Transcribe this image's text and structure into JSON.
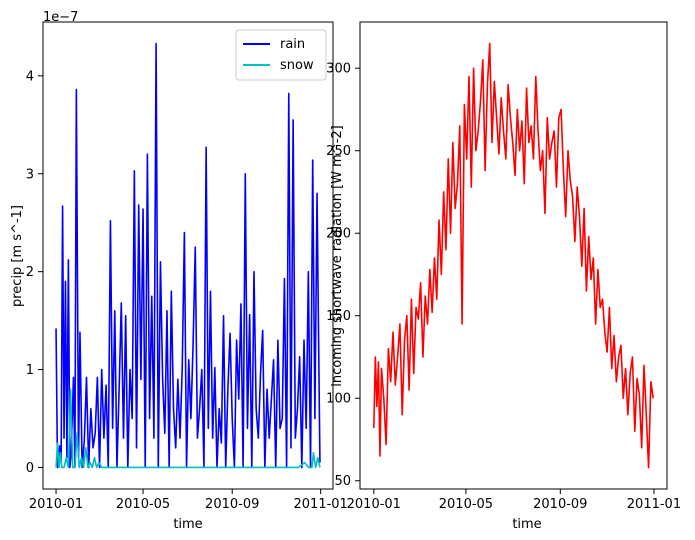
{
  "chart_data": [
    {
      "type": "line",
      "xlabel": "time",
      "ylabel": "precip [m s^-1]",
      "y_multiplier_label": "1e−7",
      "x_ticks": [
        "2010-01",
        "2010-05",
        "2010-09",
        "2011-01"
      ],
      "y_ticks": [
        "0",
        "1",
        "2",
        "3",
        "4"
      ],
      "xlim": [
        "2009-12-14",
        "2011-01-18"
      ],
      "ylim": [
        -0.22,
        4.55
      ],
      "y_scale_note": "values ×1e-7",
      "legend": {
        "placement": "top-right",
        "entries": [
          "rain",
          "snow"
        ]
      },
      "series": [
        {
          "name": "rain",
          "color": "#0000ff",
          "x": [
            "2010-01-01",
            "2010-01-03",
            "2010-01-06",
            "2010-01-08",
            "2010-01-10",
            "2010-01-12",
            "2010-01-14",
            "2010-01-16",
            "2010-01-18",
            "2010-01-20",
            "2010-01-22",
            "2010-01-25",
            "2010-01-27",
            "2010-01-29",
            "2010-02-01",
            "2010-02-03",
            "2010-02-06",
            "2010-02-09",
            "2010-02-12",
            "2010-02-15",
            "2010-02-18",
            "2010-02-21",
            "2010-02-24",
            "2010-02-27",
            "2010-03-02",
            "2010-03-05",
            "2010-03-08",
            "2010-03-11",
            "2010-03-14",
            "2010-03-17",
            "2010-03-20",
            "2010-03-23",
            "2010-03-26",
            "2010-03-29",
            "2010-04-01",
            "2010-04-04",
            "2010-04-07",
            "2010-04-10",
            "2010-04-13",
            "2010-04-16",
            "2010-04-19",
            "2010-04-22",
            "2010-04-25",
            "2010-04-28",
            "2010-05-01",
            "2010-05-04",
            "2010-05-07",
            "2010-05-10",
            "2010-05-13",
            "2010-05-16",
            "2010-05-19",
            "2010-05-22",
            "2010-05-25",
            "2010-05-28",
            "2010-05-31",
            "2010-06-03",
            "2010-06-06",
            "2010-06-09",
            "2010-06-12",
            "2010-06-15",
            "2010-06-18",
            "2010-06-21",
            "2010-06-24",
            "2010-06-27",
            "2010-06-30",
            "2010-07-03",
            "2010-07-06",
            "2010-07-09",
            "2010-07-12",
            "2010-07-15",
            "2010-07-18",
            "2010-07-21",
            "2010-07-24",
            "2010-07-27",
            "2010-07-30",
            "2010-08-02",
            "2010-08-05",
            "2010-08-08",
            "2010-08-11",
            "2010-08-14",
            "2010-08-17",
            "2010-08-20",
            "2010-08-23",
            "2010-08-26",
            "2010-08-29",
            "2010-09-01",
            "2010-09-04",
            "2010-09-07",
            "2010-09-10",
            "2010-09-13",
            "2010-09-16",
            "2010-09-19",
            "2010-09-22",
            "2010-09-25",
            "2010-09-28",
            "2010-10-01",
            "2010-10-04",
            "2010-10-07",
            "2010-10-10",
            "2010-10-13",
            "2010-10-16",
            "2010-10-19",
            "2010-10-22",
            "2010-10-25",
            "2010-10-28",
            "2010-10-31",
            "2010-11-03",
            "2010-11-06",
            "2010-11-09",
            "2010-11-12",
            "2010-11-15",
            "2010-11-18",
            "2010-11-21",
            "2010-11-24",
            "2010-11-27",
            "2010-11-30",
            "2010-12-03",
            "2010-12-06",
            "2010-12-09",
            "2010-12-12",
            "2010-12-15",
            "2010-12-18",
            "2010-12-21",
            "2010-12-24",
            "2010-12-27",
            "2010-12-30",
            "2010-12-31"
          ],
          "values": [
            1.42,
            0.0,
            0.22,
            0.05,
            2.67,
            0.3,
            1.9,
            0.1,
            2.12,
            0.0,
            0.15,
            0.92,
            0.0,
            3.86,
            0.1,
            1.38,
            0.0,
            0.28,
            0.92,
            0.0,
            0.6,
            0.2,
            0.35,
            0.92,
            0.0,
            1.0,
            0.3,
            0.84,
            0.0,
            2.52,
            0.4,
            1.6,
            0.0,
            0.8,
            1.68,
            0.3,
            1.55,
            0.0,
            1.0,
            0.5,
            3.03,
            0.2,
            2.68,
            0.9,
            2.64,
            0.0,
            3.2,
            0.5,
            1.75,
            0.3,
            4.33,
            0.0,
            2.1,
            0.9,
            0.35,
            1.6,
            0.0,
            1.8,
            0.6,
            0.2,
            0.9,
            0.3,
            1.0,
            2.4,
            0.0,
            1.1,
            0.5,
            1.25,
            2.25,
            0.3,
            0.6,
            1.0,
            0.0,
            3.27,
            0.4,
            1.8,
            0.3,
            1.02,
            0.0,
            0.6,
            0.25,
            1.55,
            0.0,
            0.8,
            1.37,
            0.5,
            0.0,
            1.3,
            0.7,
            1.67,
            0.0,
            3.0,
            0.4,
            1.56,
            0.0,
            2.0,
            0.6,
            0.3,
            0.95,
            1.4,
            0.0,
            0.8,
            0.3,
            0.7,
            1.1,
            0.0,
            1.3,
            0.4,
            0.5,
            1.93,
            0.0,
            3.82,
            0.2,
            3.55,
            0.3,
            0.6,
            1.13,
            0.0,
            1.3,
            0.4,
            2.0,
            0.0,
            3.14,
            0.5,
            2.8,
            0.7,
            0.05
          ]
        },
        {
          "name": "snow",
          "color": "#00bfbf",
          "x": [
            "2010-01-01",
            "2010-01-03",
            "2010-01-05",
            "2010-01-07",
            "2010-01-09",
            "2010-01-12",
            "2010-01-15",
            "2010-01-18",
            "2010-01-21",
            "2010-01-24",
            "2010-01-27",
            "2010-01-30",
            "2010-02-02",
            "2010-02-05",
            "2010-02-08",
            "2010-02-11",
            "2010-02-14",
            "2010-02-17",
            "2010-02-20",
            "2010-02-23",
            "2010-02-26",
            "2010-03-01",
            "2010-03-05",
            "2010-03-10",
            "2010-03-15",
            "2010-03-20",
            "2010-03-25",
            "2010-03-31",
            "2010-04-30",
            "2010-06-01",
            "2010-07-01",
            "2010-08-01",
            "2010-09-01",
            "2010-10-01",
            "2010-11-01",
            "2010-11-20",
            "2010-12-01",
            "2010-12-10",
            "2010-12-15",
            "2010-12-20",
            "2010-12-22",
            "2010-12-25",
            "2010-12-28",
            "2010-12-31"
          ],
          "values": [
            0.0,
            0.25,
            0.0,
            0.15,
            0.0,
            0.0,
            0.1,
            0.0,
            0.8,
            0.0,
            0.0,
            0.35,
            0.0,
            0.1,
            0.0,
            0.2,
            0.0,
            0.05,
            0.0,
            0.1,
            0.0,
            0.05,
            0.0,
            0.0,
            0.0,
            0.0,
            0.0,
            0.0,
            0.0,
            0.0,
            0.0,
            0.0,
            0.0,
            0.0,
            0.0,
            0.0,
            0.0,
            0.05,
            0.0,
            0.0,
            0.15,
            0.0,
            0.1,
            0.0
          ]
        }
      ]
    },
    {
      "type": "line",
      "xlabel": "time",
      "ylabel": "incoming shortwave radiation [W m^-2]",
      "x_ticks": [
        "2010-01",
        "2010-05",
        "2010-09",
        "2011-01"
      ],
      "y_ticks": [
        "50",
        "100",
        "150",
        "200",
        "250",
        "300"
      ],
      "xlim": [
        "2009-12-14",
        "2011-01-18"
      ],
      "ylim": [
        45,
        328
      ],
      "series": [
        {
          "color": "#ff0000",
          "x": [
            "2010-01-01",
            "2010-01-03",
            "2010-01-05",
            "2010-01-07",
            "2010-01-09",
            "2010-01-11",
            "2010-01-14",
            "2010-01-17",
            "2010-01-20",
            "2010-01-23",
            "2010-01-26",
            "2010-01-29",
            "2010-02-01",
            "2010-02-04",
            "2010-02-07",
            "2010-02-10",
            "2010-02-13",
            "2010-02-16",
            "2010-02-19",
            "2010-02-22",
            "2010-02-25",
            "2010-02-28",
            "2010-03-03",
            "2010-03-06",
            "2010-03-09",
            "2010-03-12",
            "2010-03-15",
            "2010-03-18",
            "2010-03-21",
            "2010-03-24",
            "2010-03-27",
            "2010-03-30",
            "2010-04-02",
            "2010-04-05",
            "2010-04-08",
            "2010-04-11",
            "2010-04-14",
            "2010-04-17",
            "2010-04-20",
            "2010-04-23",
            "2010-04-26",
            "2010-04-29",
            "2010-05-02",
            "2010-05-05",
            "2010-05-08",
            "2010-05-11",
            "2010-05-14",
            "2010-05-17",
            "2010-05-20",
            "2010-05-23",
            "2010-05-26",
            "2010-05-29",
            "2010-06-01",
            "2010-06-04",
            "2010-06-07",
            "2010-06-10",
            "2010-06-13",
            "2010-06-16",
            "2010-06-19",
            "2010-06-22",
            "2010-06-25",
            "2010-06-28",
            "2010-07-01",
            "2010-07-04",
            "2010-07-07",
            "2010-07-10",
            "2010-07-13",
            "2010-07-16",
            "2010-07-19",
            "2010-07-22",
            "2010-07-25",
            "2010-07-28",
            "2010-07-31",
            "2010-08-03",
            "2010-08-06",
            "2010-08-09",
            "2010-08-12",
            "2010-08-15",
            "2010-08-18",
            "2010-08-21",
            "2010-08-24",
            "2010-08-27",
            "2010-08-30",
            "2010-09-02",
            "2010-09-05",
            "2010-09-08",
            "2010-09-11",
            "2010-09-14",
            "2010-09-17",
            "2010-09-20",
            "2010-09-23",
            "2010-09-26",
            "2010-09-29",
            "2010-10-02",
            "2010-10-05",
            "2010-10-08",
            "2010-10-11",
            "2010-10-14",
            "2010-10-17",
            "2010-10-20",
            "2010-10-23",
            "2010-10-26",
            "2010-10-29",
            "2010-11-01",
            "2010-11-04",
            "2010-11-07",
            "2010-11-10",
            "2010-11-13",
            "2010-11-16",
            "2010-11-19",
            "2010-11-22",
            "2010-11-25",
            "2010-11-28",
            "2010-12-01",
            "2010-12-04",
            "2010-12-07",
            "2010-12-10",
            "2010-12-13",
            "2010-12-16",
            "2010-12-19",
            "2010-12-22",
            "2010-12-25",
            "2010-12-28",
            "2010-12-31"
          ],
          "values": [
            82,
            125,
            95,
            122,
            65,
            118,
            100,
            72,
            130,
            110,
            140,
            108,
            125,
            145,
            90,
            135,
            150,
            105,
            160,
            115,
            155,
            148,
            170,
            125,
            162,
            145,
            178,
            152,
            185,
            160,
            208,
            175,
            225,
            190,
            245,
            200,
            255,
            215,
            230,
            265,
            145,
            278,
            245,
            295,
            228,
            300,
            250,
            262,
            280,
            305,
            238,
            290,
            315,
            255,
            292,
            270,
            248,
            282,
            262,
            245,
            290,
            270,
            255,
            235,
            275,
            250,
            268,
            230,
            288,
            255,
            265,
            245,
            295,
            262,
            238,
            250,
            212,
            270,
            245,
            255,
            262,
            228,
            270,
            275,
            238,
            210,
            250,
            232,
            222,
            195,
            228,
            210,
            180,
            215,
            165,
            198,
            172,
            185,
            145,
            178,
            155,
            160,
            140,
            128,
            155,
            118,
            138,
            110,
            125,
            132,
            100,
            118,
            90,
            115,
            125,
            80,
            112,
            102,
            70,
            120,
            90,
            58,
            110,
            100
          ]
        }
      ]
    }
  ]
}
